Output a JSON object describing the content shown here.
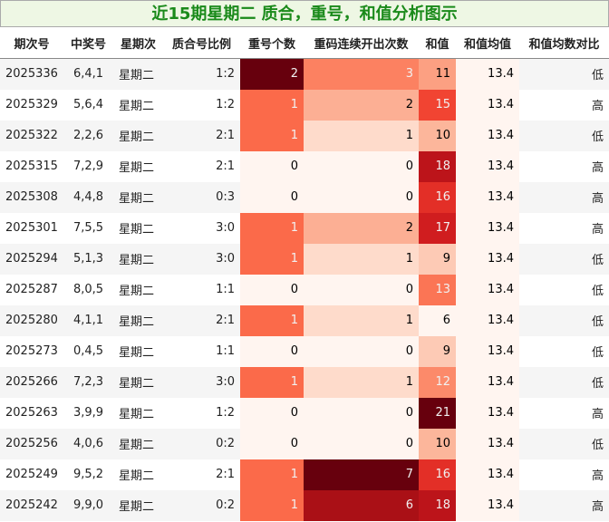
{
  "title": "近15期星期二 质合，重号，和值分析图示",
  "table": {
    "header": [
      "期次号",
      "中奖号",
      "星期次",
      "质合号比例",
      "重号个数",
      "重码连续开出次数",
      "和值",
      "和值均值",
      "和值均数对比"
    ],
    "gradient_columns": [
      4,
      5,
      6,
      7
    ],
    "colormap": "Reds",
    "rows": [
      [
        "2025336",
        "6,4,1",
        "星期二",
        "1:2",
        2,
        3,
        11,
        13.4,
        "低"
      ],
      [
        "2025329",
        "5,6,4",
        "星期二",
        "1:2",
        1,
        2,
        15,
        13.4,
        "高"
      ],
      [
        "2025322",
        "2,2,6",
        "星期二",
        "2:1",
        1,
        1,
        10,
        13.4,
        "低"
      ],
      [
        "2025315",
        "7,2,9",
        "星期二",
        "2:1",
        0,
        0,
        18,
        13.4,
        "高"
      ],
      [
        "2025308",
        "4,4,8",
        "星期二",
        "0:3",
        0,
        0,
        16,
        13.4,
        "高"
      ],
      [
        "2025301",
        "7,5,5",
        "星期二",
        "3:0",
        1,
        2,
        17,
        13.4,
        "高"
      ],
      [
        "2025294",
        "5,1,3",
        "星期二",
        "3:0",
        1,
        1,
        9,
        13.4,
        "低"
      ],
      [
        "2025287",
        "8,0,5",
        "星期二",
        "1:1",
        0,
        0,
        13,
        13.4,
        "低"
      ],
      [
        "2025280",
        "4,1,1",
        "星期二",
        "2:1",
        1,
        1,
        6,
        13.4,
        "低"
      ],
      [
        "2025273",
        "0,4,5",
        "星期二",
        "1:1",
        0,
        0,
        9,
        13.4,
        "低"
      ],
      [
        "2025266",
        "7,2,3",
        "星期二",
        "3:0",
        1,
        1,
        12,
        13.4,
        "低"
      ],
      [
        "2025263",
        "3,9,9",
        "星期二",
        "1:2",
        0,
        0,
        21,
        13.4,
        "高"
      ],
      [
        "2025256",
        "4,0,6",
        "星期二",
        "0:2",
        0,
        0,
        10,
        13.4,
        "低"
      ],
      [
        "2025249",
        "9,5,2",
        "星期二",
        "2:1",
        1,
        7,
        16,
        13.4,
        "高"
      ],
      [
        "2025242",
        "9,9,0",
        "星期二",
        "0:2",
        1,
        6,
        18,
        13.4,
        "高"
      ]
    ]
  }
}
